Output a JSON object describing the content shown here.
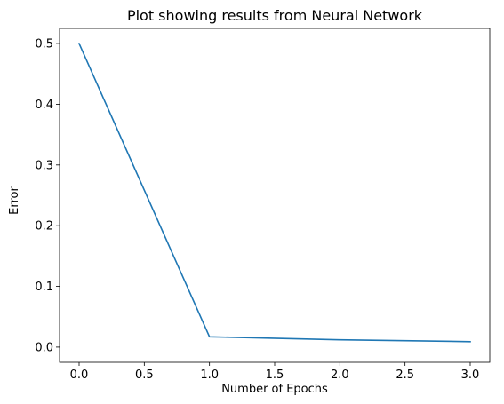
{
  "chart_data": {
    "type": "line",
    "title": "Plot showing results from Neural Network",
    "xlabel": "Number of Epochs",
    "ylabel": "Error",
    "xlim": [
      -0.15,
      3.15
    ],
    "ylim": [
      -0.025,
      0.525
    ],
    "xticks": [
      0.0,
      0.5,
      1.0,
      1.5,
      2.0,
      2.5,
      3.0
    ],
    "xtick_labels": [
      "0.0",
      "0.5",
      "1.0",
      "1.5",
      "2.0",
      "2.5",
      "3.0"
    ],
    "yticks": [
      0.0,
      0.1,
      0.2,
      0.3,
      0.4,
      0.5
    ],
    "ytick_labels": [
      "0.0",
      "0.1",
      "0.2",
      "0.3",
      "0.4",
      "0.5"
    ],
    "grid": false,
    "series": [
      {
        "name": "error",
        "color": "#1f77b4",
        "x": [
          0,
          1,
          2,
          3
        ],
        "y": [
          0.5,
          0.017,
          0.012,
          0.009
        ]
      }
    ]
  }
}
